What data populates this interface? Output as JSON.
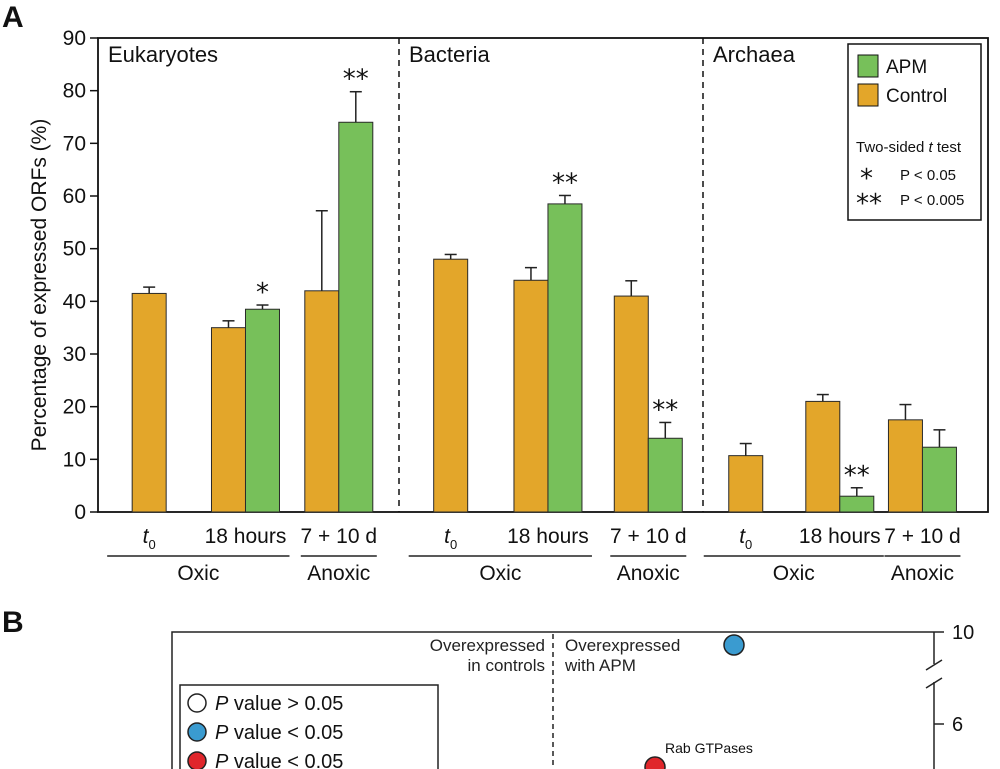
{
  "panel_a": {
    "letter": "A",
    "ylabel": "Percentage of expressed ORFs (%)",
    "colors": {
      "apm": "#77c05a",
      "control": "#e3a62a",
      "axis": "#111111"
    },
    "legend": {
      "apm": "APM",
      "control": "Control",
      "test_title": "Two-sided ",
      "test_title_italic": "t",
      "test_title_tail": " test",
      "sig1_symbol": "*",
      "sig1_label": "P < 0.05",
      "sig2_symbol": "**",
      "sig2_label": "P < 0.005"
    }
  },
  "chart_data": {
    "type": "bar",
    "ylabel": "Percentage of expressed ORFs (%)",
    "ylim": [
      0,
      90
    ],
    "yticks": [
      0,
      10,
      20,
      30,
      40,
      50,
      60,
      70,
      80,
      90
    ],
    "legend_position": "top-right",
    "series_names": [
      "APM",
      "Control"
    ],
    "groups": [
      {
        "name": "Eukaryotes",
        "categories": [
          {
            "label_main": "t",
            "label_sub": "0",
            "condition": "Oxic",
            "control": 41.5,
            "control_err": 1.2,
            "apm": null,
            "apm_err": null,
            "sig": ""
          },
          {
            "label_main": "18 hours",
            "label_sub": "",
            "condition": "Oxic",
            "control": 35,
            "control_err": 1.3,
            "apm": 38.5,
            "apm_err": 0.8,
            "sig": "*"
          },
          {
            "label_main": "7 + 10 d",
            "label_sub": "",
            "condition": "Anoxic",
            "control": 42,
            "control_err": 15.2,
            "apm": 74,
            "apm_err": 5.8,
            "sig": "**"
          }
        ]
      },
      {
        "name": "Bacteria",
        "categories": [
          {
            "label_main": "t",
            "label_sub": "0",
            "condition": "Oxic",
            "control": 48,
            "control_err": 0.9,
            "apm": null,
            "apm_err": null,
            "sig": ""
          },
          {
            "label_main": "18 hours",
            "label_sub": "",
            "condition": "Oxic",
            "control": 44,
            "control_err": 2.4,
            "apm": 58.5,
            "apm_err": 1.6,
            "sig": "**"
          },
          {
            "label_main": "7 + 10 d",
            "label_sub": "",
            "condition": "Anoxic",
            "control": 41,
            "control_err": 2.9,
            "apm": 14,
            "apm_err": 3.0,
            "sig": "**"
          }
        ]
      },
      {
        "name": "Archaea",
        "categories": [
          {
            "label_main": "t",
            "label_sub": "0",
            "condition": "Oxic",
            "control": 10.7,
            "control_err": 2.3,
            "apm": null,
            "apm_err": null,
            "sig": ""
          },
          {
            "label_main": "18 hours",
            "label_sub": "",
            "condition": "Oxic",
            "control": 21,
            "control_err": 1.3,
            "apm": 3,
            "apm_err": 1.6,
            "sig": "**"
          },
          {
            "label_main": "7 + 10 d",
            "label_sub": "",
            "condition": "Anoxic",
            "control": 17.5,
            "control_err": 2.9,
            "apm": 12.3,
            "apm_err": 3.3,
            "sig": ""
          }
        ]
      }
    ],
    "condition_labels": {
      "oxic": "Oxic",
      "anoxic": "Anoxic"
    }
  },
  "panel_b": {
    "letter": "B",
    "left_region_line1": "Overexpressed",
    "left_region_line2": "in controls",
    "right_region_line1": "Overexpressed",
    "right_region_line2": "with APM",
    "y_ticks": [
      "10",
      "6"
    ],
    "legend": [
      {
        "italic": "P",
        "text": " value > 0.05",
        "color": "#ffffff"
      },
      {
        "italic": "P",
        "text": " value < 0.05",
        "color": "#3a9bd0"
      },
      {
        "italic": "P",
        "text": " value < 0.05",
        "color": "#e0262b"
      }
    ],
    "annotation": "Rab GTPases",
    "points": [
      {
        "color": "#3a9bd0",
        "name": "blue-point"
      },
      {
        "color": "#e0262b",
        "name": "red-point"
      }
    ]
  }
}
